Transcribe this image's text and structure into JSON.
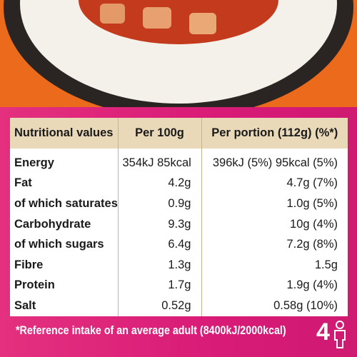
{
  "table": {
    "header": [
      "Nutritional values",
      "Per 100g",
      "Per portion (112g) (%*)"
    ],
    "rows": [
      [
        "Energy",
        "354kJ 85kcal",
        "396kJ (5%) 95kcal (5%)"
      ],
      [
        "Fat",
        "4.2g",
        "4.7g (7%)"
      ],
      [
        "of which saturates",
        "0.9g",
        "1.0g (5%)"
      ],
      [
        "Carbohydrate",
        "9.3g",
        "10g (4%)"
      ],
      [
        "of which sugars",
        "6.4g",
        "7.2g (8%)"
      ],
      [
        "Fibre",
        "1.3g",
        "1.5g"
      ],
      [
        "Protein",
        "1.7g",
        "1.9g (4%)"
      ],
      [
        "Salt",
        "0.52g",
        "0.58g (10%)"
      ]
    ]
  },
  "footnote": "*Reference intake of an average adult (8400kJ/2000kcal)",
  "portions": "4"
}
